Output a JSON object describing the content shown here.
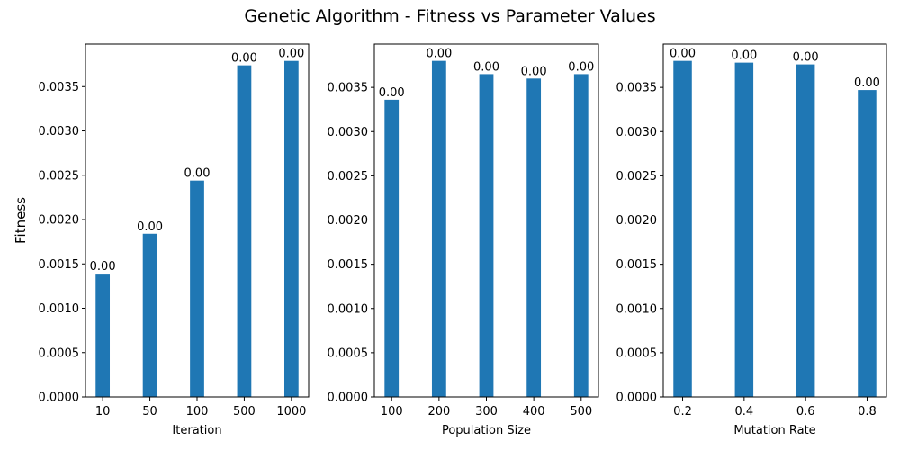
{
  "figure": {
    "title": "Genetic Algorithm - Fitness vs Parameter Values",
    "bar_color": "#1f77b4"
  },
  "chart_data": [
    {
      "type": "bar",
      "title": "",
      "xlabel": "Iteration",
      "ylabel": "Fitness",
      "categories": [
        "10",
        "50",
        "100",
        "500",
        "1000"
      ],
      "values": [
        0.00139,
        0.00184,
        0.00244,
        0.00374,
        0.00379
      ],
      "data_labels": [
        "0.00",
        "0.00",
        "0.00",
        "0.00",
        "0.00"
      ],
      "ylim": [
        0,
        0.00398
      ],
      "yticks": [
        "0.0000",
        "0.0005",
        "0.0010",
        "0.0015",
        "0.0020",
        "0.0025",
        "0.0030",
        "0.0035"
      ],
      "grid": false
    },
    {
      "type": "bar",
      "title": "",
      "xlabel": "Population Size",
      "ylabel": "",
      "categories": [
        "100",
        "200",
        "300",
        "400",
        "500"
      ],
      "values": [
        0.00336,
        0.0038,
        0.00365,
        0.0036,
        0.00365
      ],
      "data_labels": [
        "0.00",
        "0.00",
        "0.00",
        "0.00",
        "0.00"
      ],
      "ylim": [
        0,
        0.00399
      ],
      "yticks": [
        "0.0000",
        "0.0005",
        "0.0010",
        "0.0015",
        "0.0020",
        "0.0025",
        "0.0030",
        "0.0035"
      ],
      "grid": false
    },
    {
      "type": "bar",
      "title": "",
      "xlabel": "Mutation Rate",
      "ylabel": "",
      "categories": [
        "0.2",
        "0.4",
        "0.6",
        "0.8"
      ],
      "values": [
        0.0038,
        0.00378,
        0.00376,
        0.00347
      ],
      "data_labels": [
        "0.00",
        "0.00",
        "0.00",
        "0.00"
      ],
      "ylim": [
        0,
        0.00399
      ],
      "yticks": [
        "0.0000",
        "0.0005",
        "0.0010",
        "0.0015",
        "0.0020",
        "0.0025",
        "0.0030",
        "0.0035"
      ],
      "grid": false
    }
  ]
}
